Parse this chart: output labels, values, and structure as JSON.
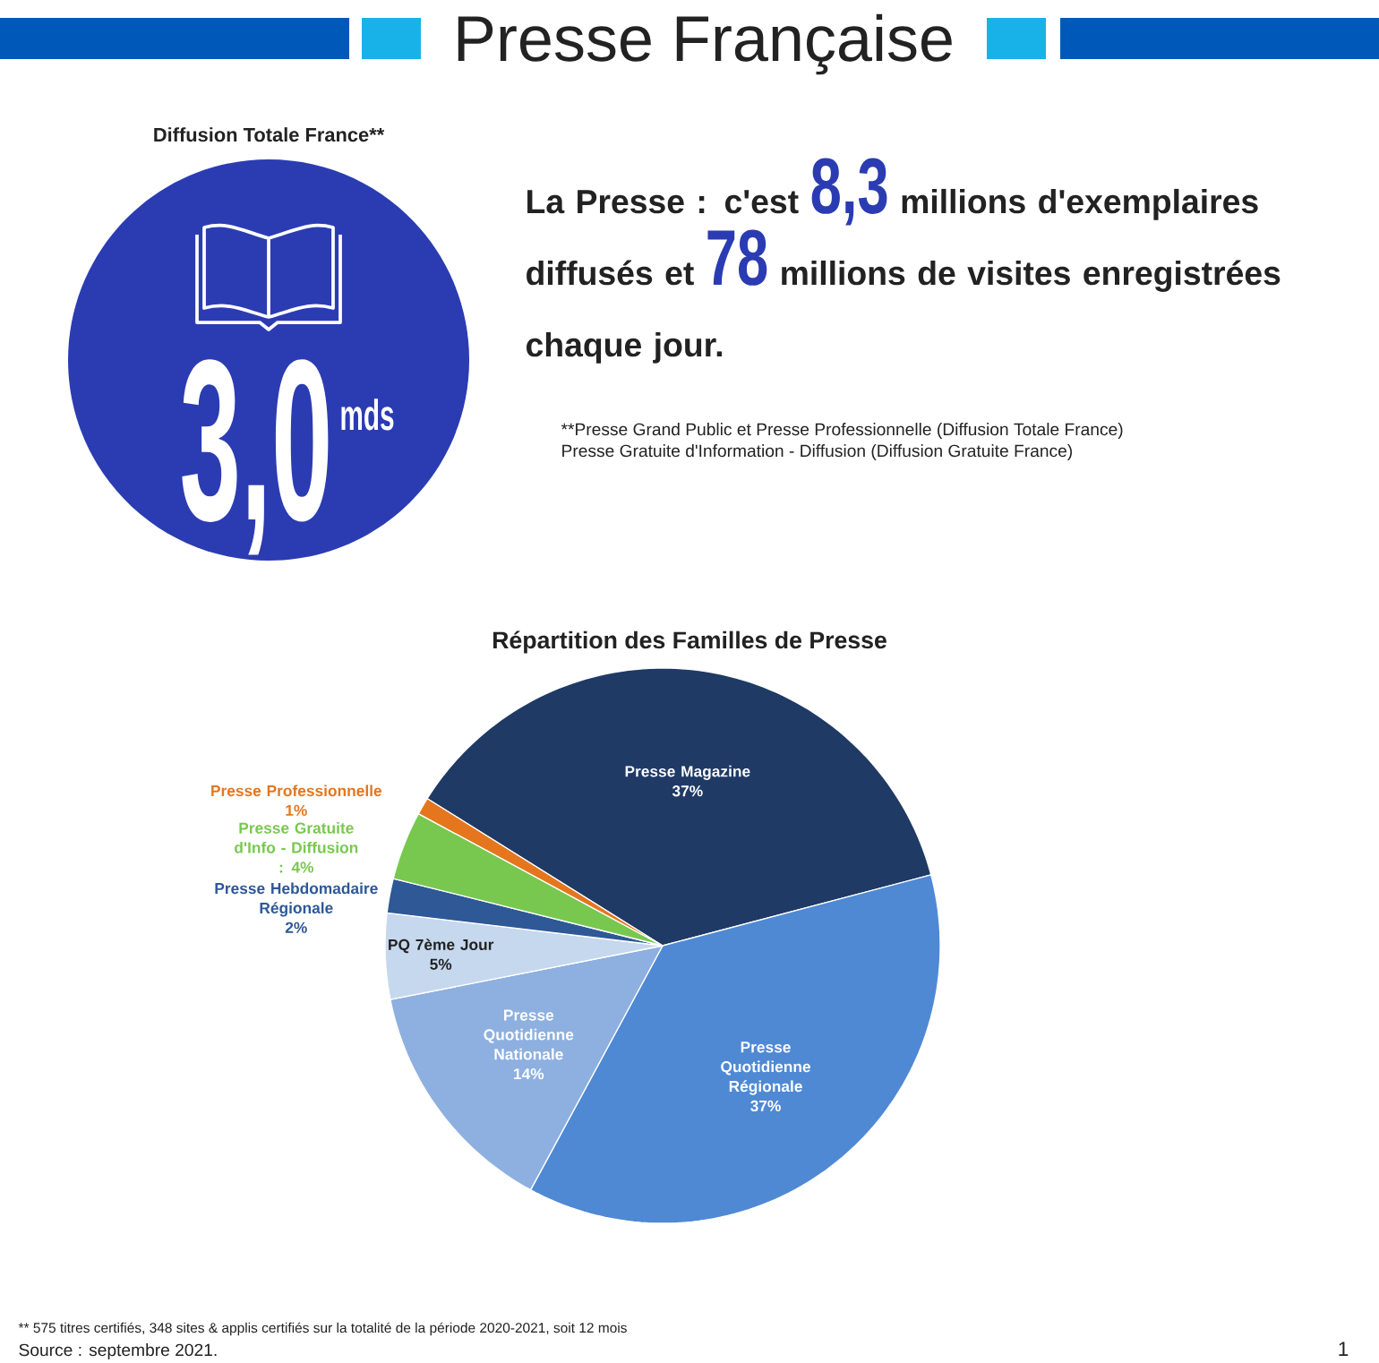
{
  "chart_data": {
    "type": "pie",
    "title": "Presse Française",
    "subtitle": "Répartition des Familles de Presse",
    "categories": [
      "Presse Magazine",
      "Presse Quotidienne Régionale",
      "Presse Quotidienne Nationale",
      "PQ 7ème Jour",
      "Presse Hebdomadaire Régionale",
      "Presse Gratuite d'Info - Diffusion",
      "Presse Professionnelle"
    ],
    "values": [
      37,
      37,
      14,
      5,
      2,
      4,
      1
    ],
    "value_labels": [
      "37%",
      "37%",
      "14%",
      "5%",
      "2%",
      ": 4%",
      "1%"
    ],
    "colors": [
      "#1f3a64",
      "#4f89d4",
      "#8db0e0",
      "#c6d8ee",
      "#2e5896",
      "#78c850",
      "#e5761e"
    ],
    "annotations": [
      "Diffusion Totale France**",
      "3,0",
      "mds",
      "La Presse : c'est **8,3** millions d'exemplaires diffusés et **78** millions de visites enregistrées chaque jour.",
      "**Presse Grand Public et Presse Professionnelle (Diffusion Totale France)",
      "Presse Gratuite d'Information - Diffusion (Diffusion Gratuite France)",
      "** 575 titres certifiés, 348 sites & applis certifiés sur la totalité de la période 2020-2021, soit 12 mois",
      "Source : septembre 2021.",
      "1"
    ]
  }
}
